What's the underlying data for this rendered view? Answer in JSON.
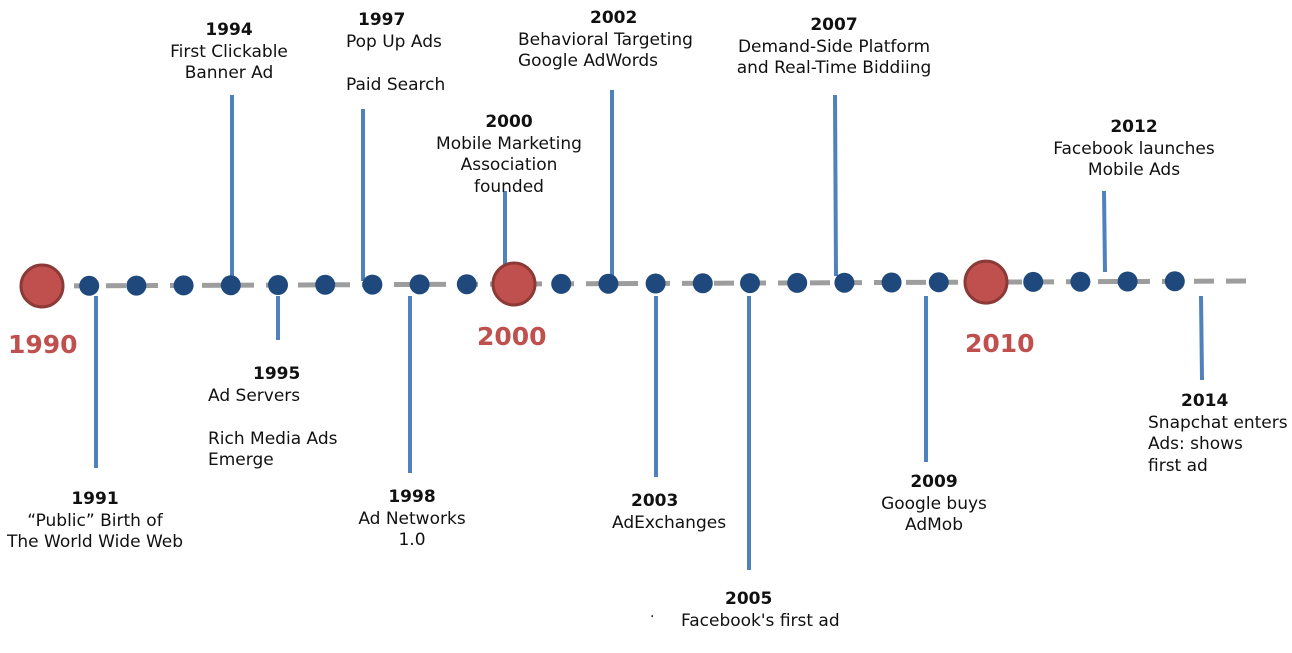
{
  "colors": {
    "axis": "#9d9d9d",
    "year_dot": "#1f497d",
    "decade_dot": "#c0504d",
    "decade_dot_stroke": "#8b3a37",
    "connector": "#4f81bd",
    "decade_label": "#c0504d"
  },
  "decades": [
    {
      "label": "1990",
      "year": 1990
    },
    {
      "label": "2000",
      "year": 2000
    },
    {
      "label": "2010",
      "year": 2010
    }
  ],
  "year_dots": [
    1991,
    1992,
    1993,
    1994,
    1995,
    1996,
    1997,
    1998,
    1999,
    2001,
    2002,
    2003,
    2004,
    2005,
    2006,
    2007,
    2008,
    2009,
    2011,
    2012,
    2013,
    2014
  ],
  "events": [
    {
      "year": "1991",
      "side": "below",
      "lines": [
        "“Public” Birth of",
        "The World Wide Web"
      ]
    },
    {
      "year": "1994",
      "side": "above",
      "lines": [
        "First Clickable",
        "Banner Ad"
      ]
    },
    {
      "year": "1995",
      "side": "below",
      "lines": [
        "Ad Servers",
        "",
        "Rich Media Ads",
        "Emerge"
      ]
    },
    {
      "year": "1997",
      "side": "above",
      "lines": [
        "Pop Up Ads",
        "",
        "Paid Search"
      ]
    },
    {
      "year": "1998",
      "side": "below",
      "lines": [
        "Ad Networks",
        "1.0"
      ]
    },
    {
      "year": "2000",
      "side": "above",
      "lines": [
        "Mobile Marketing",
        "Association",
        "founded"
      ]
    },
    {
      "year": "2002",
      "side": "above",
      "lines": [
        "Behavioral Targeting",
        "Google AdWords"
      ]
    },
    {
      "year": "2003",
      "side": "below",
      "lines": [
        "AdExchanges"
      ]
    },
    {
      "year": "2005",
      "side": "below",
      "lines": [
        "Facebook's first ad"
      ]
    },
    {
      "year": "2007",
      "side": "above",
      "lines": [
        "Demand-Side Platform",
        "and Real-Time Biddiing"
      ]
    },
    {
      "year": "2009",
      "side": "below",
      "lines": [
        "Google buys",
        "AdMob"
      ]
    },
    {
      "year": "2012",
      "side": "above",
      "lines": [
        "Facebook launches",
        "Mobile Ads"
      ]
    },
    {
      "year": "2014",
      "side": "below",
      "lines": [
        "Snapchat enters",
        "Ads: shows",
        "first ad"
      ]
    }
  ],
  "stray_mark": "·"
}
